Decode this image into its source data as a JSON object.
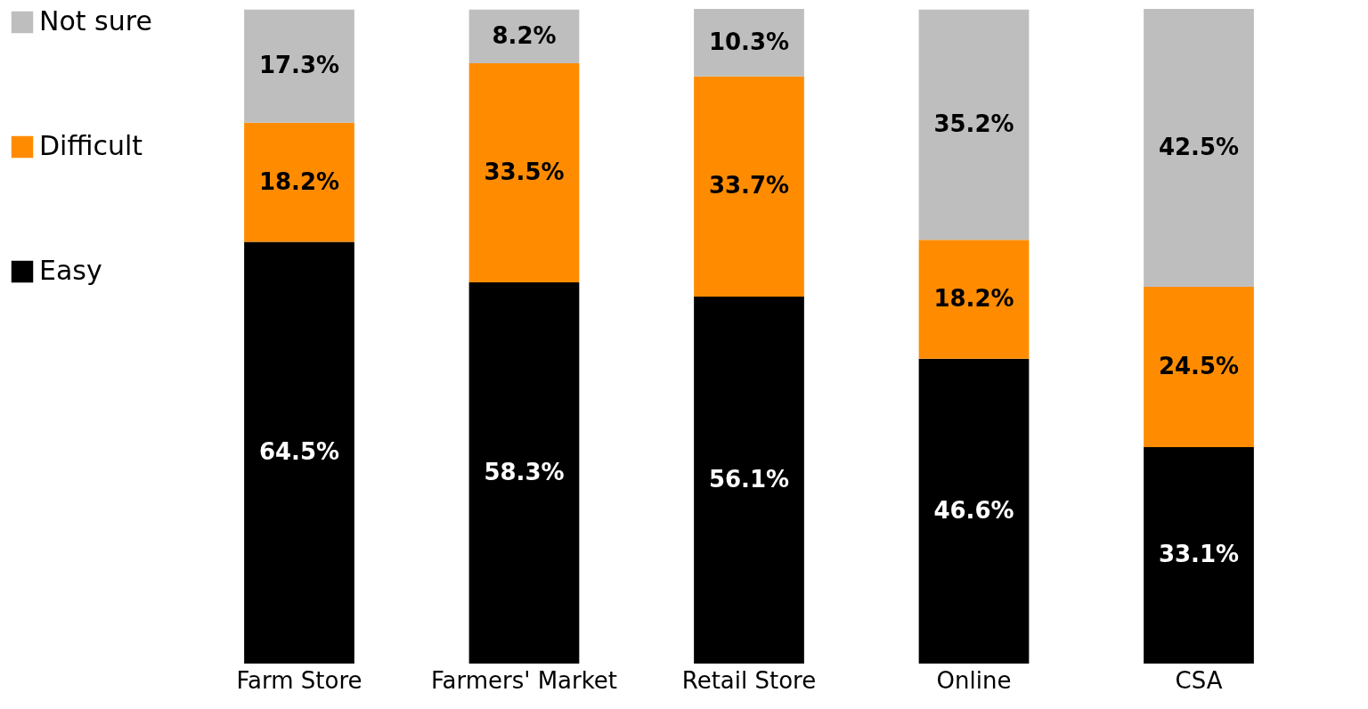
{
  "chart_data": {
    "type": "bar",
    "stacked": true,
    "legend": "left",
    "categories": [
      "Farm Store",
      "Farmers' Market",
      "Retail Store",
      "Online",
      "CSA"
    ],
    "series": [
      {
        "name": "Easy",
        "color": "#000000",
        "values": [
          64.5,
          58.3,
          56.1,
          46.6,
          33.1
        ],
        "value_labels": [
          "64.5%",
          "58.3%",
          "56.1%",
          "46.6%",
          "33.1%"
        ]
      },
      {
        "name": "Difficult",
        "color": "#ff8c00",
        "values": [
          18.2,
          33.5,
          33.7,
          18.2,
          24.5
        ],
        "value_labels": [
          "18.2%",
          "33.5%",
          "33.7%",
          "18.2%",
          "24.5%"
        ]
      },
      {
        "name": "Not sure",
        "color": "#bebebe",
        "values": [
          17.3,
          8.2,
          10.3,
          35.2,
          42.5
        ],
        "value_labels": [
          "17.3%",
          "8.2%",
          "10.3%",
          "35.2%",
          "42.5%"
        ]
      }
    ]
  }
}
